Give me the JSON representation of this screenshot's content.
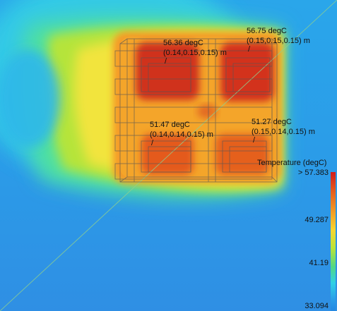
{
  "probes": [
    {
      "temp": "56.36 degC",
      "coords": "(0.14,0.15,0.15) m"
    },
    {
      "temp": "56.75 degC",
      "coords": "(0.15,0.15,0.15) m"
    },
    {
      "temp": "51.47 degC",
      "coords": "(0.14,0.14,0.15) m"
    },
    {
      "temp": "51.27 degC",
      "coords": "(0.15,0.14,0.15) m"
    }
  ],
  "legend": {
    "title": "Temperature (degC)",
    "max_label": "> 57.383",
    "ticks": [
      "49.287",
      "41.19",
      "33.094"
    ]
  },
  "colors": {
    "background_flow": "#2fa6ea",
    "plume_green": "#4fe0a0",
    "plume_yellow": "#f2e43c",
    "hot_orange": "#f59a25",
    "hot_red": "#cf2a1c"
  }
}
